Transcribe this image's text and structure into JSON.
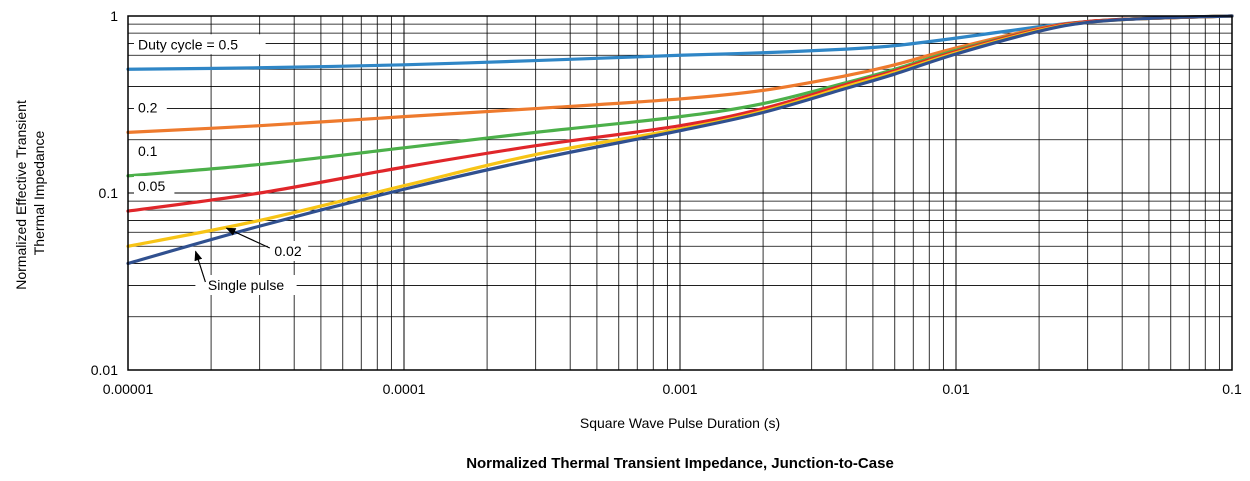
{
  "chart_data": {
    "type": "line",
    "title": "Normalized Thermal Transient Impedance, Junction-to-Case",
    "xlabel": "Square Wave Pulse Duration (s)",
    "ylabel_lines": [
      "Normalized Effective Transient",
      "Thermal Impedance"
    ],
    "x_scale": "log",
    "y_scale": "log",
    "xlim": [
      1e-05,
      0.1
    ],
    "ylim": [
      0.01,
      1
    ],
    "x_ticks": [
      {
        "value": 1e-05,
        "label": "0.00001"
      },
      {
        "value": 0.0001,
        "label": "0.0001"
      },
      {
        "value": 0.001,
        "label": "0.001"
      },
      {
        "value": 0.01,
        "label": "0.01"
      },
      {
        "value": 0.1,
        "label": "0.1"
      }
    ],
    "y_ticks": [
      {
        "value": 0.01,
        "label": "0.01"
      },
      {
        "value": 0.1,
        "label": "0.1"
      },
      {
        "value": 1,
        "label": "1"
      }
    ],
    "grid": true,
    "series": [
      {
        "name": "Duty cycle = 0.5",
        "color": "#2f86c6",
        "x": [
          1e-05,
          3e-05,
          0.0001,
          0.0003,
          0.001,
          0.002,
          0.004,
          0.006,
          0.01,
          0.02,
          0.03,
          0.05,
          0.1
        ],
        "y": [
          0.5,
          0.51,
          0.53,
          0.56,
          0.6,
          0.62,
          0.65,
          0.68,
          0.75,
          0.87,
          0.93,
          0.97,
          1.0
        ]
      },
      {
        "name": "0.2",
        "color": "#ee7a2d",
        "x": [
          1e-05,
          3e-05,
          0.0001,
          0.0003,
          0.001,
          0.002,
          0.004,
          0.006,
          0.01,
          0.02,
          0.03,
          0.05,
          0.1
        ],
        "y": [
          0.22,
          0.24,
          0.27,
          0.3,
          0.34,
          0.38,
          0.46,
          0.53,
          0.66,
          0.85,
          0.93,
          0.97,
          1.0
        ]
      },
      {
        "name": "0.1",
        "color": "#4cb04a",
        "x": [
          1e-05,
          3e-05,
          0.0001,
          0.0003,
          0.001,
          0.002,
          0.004,
          0.006,
          0.01,
          0.02,
          0.03,
          0.05,
          0.1
        ],
        "y": [
          0.125,
          0.145,
          0.18,
          0.22,
          0.27,
          0.32,
          0.42,
          0.5,
          0.64,
          0.84,
          0.93,
          0.97,
          1.0
        ]
      },
      {
        "name": "0.05",
        "color": "#e0262a",
        "x": [
          1e-05,
          3e-05,
          0.0001,
          0.0003,
          0.001,
          0.002,
          0.004,
          0.006,
          0.01,
          0.02,
          0.03,
          0.05,
          0.1
        ],
        "y": [
          0.079,
          0.1,
          0.14,
          0.185,
          0.24,
          0.3,
          0.41,
          0.49,
          0.63,
          0.84,
          0.93,
          0.97,
          1.0
        ]
      },
      {
        "name": "0.02",
        "color": "#f7c416",
        "x": [
          1e-05,
          3e-05,
          0.0001,
          0.0003,
          0.001,
          0.002,
          0.004,
          0.006,
          0.01,
          0.02,
          0.03,
          0.05,
          0.1
        ],
        "y": [
          0.05,
          0.07,
          0.11,
          0.165,
          0.23,
          0.29,
          0.4,
          0.48,
          0.62,
          0.83,
          0.92,
          0.97,
          1.0
        ]
      },
      {
        "name": "Single pulse",
        "color": "#30508f",
        "x": [
          1e-05,
          3e-05,
          0.0001,
          0.0003,
          0.001,
          0.002,
          0.004,
          0.006,
          0.01,
          0.02,
          0.03,
          0.05,
          0.1
        ],
        "y": [
          0.04,
          0.065,
          0.105,
          0.155,
          0.225,
          0.285,
          0.39,
          0.47,
          0.61,
          0.82,
          0.92,
          0.97,
          1.0
        ]
      }
    ],
    "annotations": [
      {
        "text": "Duty cycle = 0.5",
        "series": "Duty cycle = 0.5"
      },
      {
        "text": "0.2",
        "series": "0.2"
      },
      {
        "text": "0.1",
        "series": "0.1"
      },
      {
        "text": "0.05",
        "series": "0.05"
      },
      {
        "text": "0.02",
        "series": "0.02",
        "arrow_to": {
          "x": 2.2e-05,
          "y": 0.065
        }
      },
      {
        "text": "Single pulse",
        "series": "Single pulse",
        "arrow_to": {
          "x": 1.7e-05,
          "y": 0.048
        }
      }
    ]
  }
}
